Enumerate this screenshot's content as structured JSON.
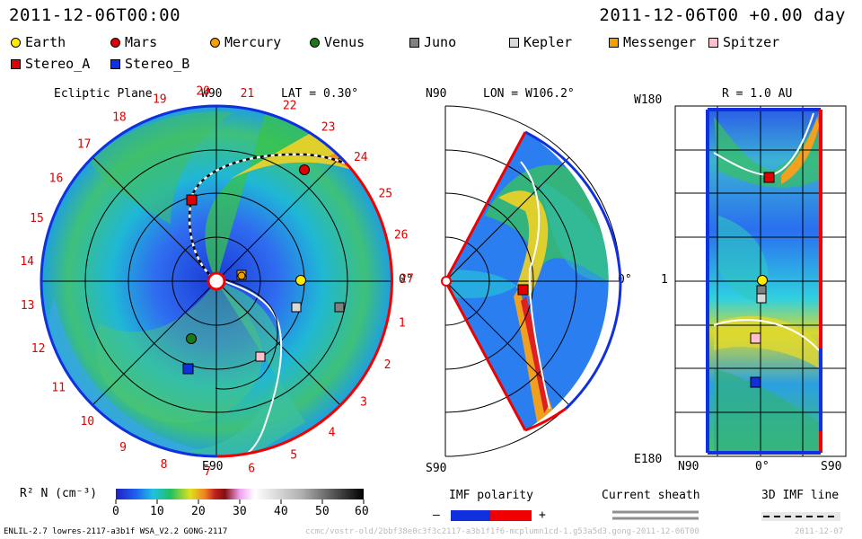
{
  "header": {
    "datetime_left": "2011-12-06T00:00",
    "datetime_right": "2011-12-06T00 +0.00 day"
  },
  "legend": [
    {
      "name": "Earth",
      "color": "#ffeb00",
      "shape": "circle"
    },
    {
      "name": "Mars",
      "color": "#e00000",
      "shape": "circle"
    },
    {
      "name": "Mercury",
      "color": "#f0a000",
      "shape": "circle"
    },
    {
      "name": "Venus",
      "color": "#1a7a1a",
      "shape": "circle"
    },
    {
      "name": "Juno",
      "color": "#808080",
      "shape": "square"
    },
    {
      "name": "Kepler",
      "color": "#d8d8d8",
      "shape": "square"
    },
    {
      "name": "Messenger",
      "color": "#f0a000",
      "shape": "square"
    },
    {
      "name": "Spitzer",
      "color": "#ffc0cb",
      "shape": "square"
    },
    {
      "name": "Stereo_A",
      "color": "#e00000",
      "shape": "square"
    },
    {
      "name": "Stereo_B",
      "color": "#1030e0",
      "shape": "square"
    }
  ],
  "panels": {
    "ecliptic": {
      "title": "Ecliptic Plane",
      "top_label": "W90",
      "bottom_label": "E90",
      "right_label": "0°",
      "lat_text": "LAT = 0.30°",
      "carrington": [
        "20",
        "21",
        "22",
        "23",
        "24",
        "25",
        "26",
        "27",
        "1",
        "2",
        "3",
        "4",
        "5",
        "6",
        "7",
        "8",
        "9",
        "10",
        "11",
        "12",
        "13",
        "14",
        "15",
        "16",
        "17",
        "18",
        "19"
      ]
    },
    "meridional": {
      "lon_text": "LON = W106.2°",
      "top_label": "N90",
      "bottom_label": "S90",
      "right_label": "0°"
    },
    "rmap": {
      "r_text": "R = 1.0 AU",
      "top_left": "W180",
      "mid_left": "1",
      "bottom_left": "E180",
      "bottom_labels": [
        "N90",
        "0°",
        "S90"
      ]
    }
  },
  "colorbar": {
    "label": "R² N (cm⁻³)",
    "ticks": [
      "0",
      "10",
      "20",
      "30",
      "40",
      "50",
      "60"
    ]
  },
  "imf": {
    "polarity_label": "IMF polarity",
    "minus": "–",
    "plus": "+",
    "sheath_label": "Current sheath",
    "line_label": "3D IMF line"
  },
  "footer": {
    "model": "ENLIL-2.7 lowres-2117-a3b1f WSA_V2.2 GONG-2117",
    "run": "ccmc/vostr-old/2bbf38e0c3f3c2117-a3b1f1f6-mcplumn1cd-1.g53a5d3.gong-2011-12-06T00",
    "stamp": "2011-12-07"
  }
}
